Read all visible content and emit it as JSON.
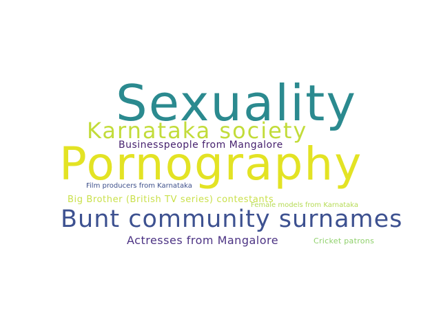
{
  "cloud": {
    "background": "#ffffff",
    "words": [
      {
        "text": "Sexuality",
        "color": "#2b8a8f"
      },
      {
        "text": "Pornography",
        "color": "#e3e324"
      },
      {
        "text": "Karnataka society",
        "color": "#c2dc3a"
      },
      {
        "text": "Bunt community surnames",
        "color": "#3d5190"
      },
      {
        "text": "Businesspeople from Mangalore",
        "color": "#46216e"
      },
      {
        "text": "Actresses from Mangalore",
        "color": "#4b3283"
      },
      {
        "text": "Big Brother (British TV series) contestants",
        "color": "#c9e04a"
      },
      {
        "text": "Film producers from Karnataka",
        "color": "#3d4f8a"
      },
      {
        "text": "Female models from Karnataka",
        "color": "#b6db55"
      },
      {
        "text": "Cricket patrons",
        "color": "#8ed06a"
      }
    ]
  }
}
